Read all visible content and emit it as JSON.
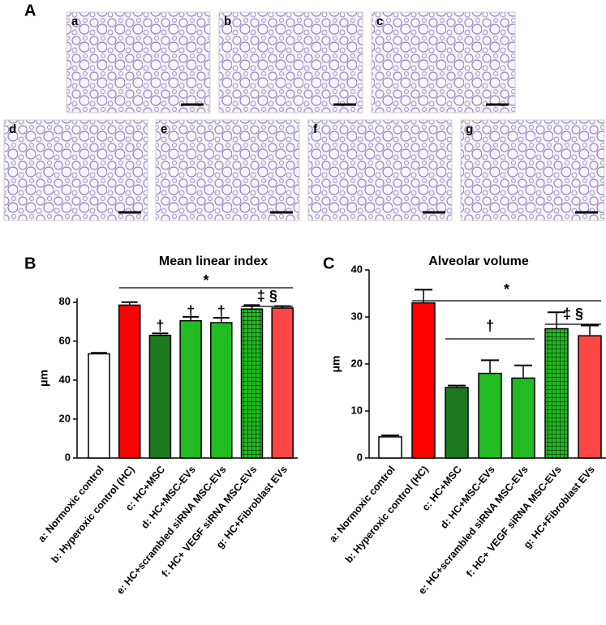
{
  "panel_labels": [
    "A",
    "B",
    "C"
  ],
  "micrographs": [
    "a",
    "b",
    "c",
    "d",
    "e",
    "f",
    "g"
  ],
  "chart_data": [
    {
      "type": "bar",
      "title": "Mean linear index",
      "ylabel": "μm",
      "categories": [
        "a: Normoxic control",
        "b: Hyperoxic control (HC)",
        "c: HC+MSC",
        "d: HC+MSC-EVs",
        "e: HC+scrambled siRNA MSC-EVs",
        "f: HC+ VEGF siRNA MSC-EVs",
        "g: HC+Fibroblast EVs"
      ],
      "values": [
        53.5,
        78.5,
        63,
        70.5,
        69.5,
        76.5,
        77
      ],
      "errors": [
        0.5,
        1.5,
        1,
        2,
        2.5,
        2,
        1
      ],
      "colors": [
        "#ffffff",
        "#ff0000",
        "#1e7a1e",
        "#22bb22",
        "#22bb22",
        "#22bb22",
        "#ff4646"
      ],
      "hatched": [
        false,
        false,
        false,
        false,
        false,
        true,
        false
      ],
      "ylim": [
        0,
        82
      ],
      "yticks": [
        0,
        20,
        40,
        60,
        80
      ],
      "annotations": [
        "*",
        "†",
        "†",
        "†",
        "‡ §"
      ]
    },
    {
      "type": "bar",
      "title": "Alveolar volume",
      "ylabel": "μm",
      "categories": [
        "a: Normoxic control",
        "b: Hyperoxic control (HC)",
        "c: HC+MSC",
        "d: HC+MSC-EVs",
        "e: HC+scrambled siRNA MSC-EVs",
        "f: HC+ VEGF siRNA MSC-EVs",
        "g: HC+Fibroblast EVs"
      ],
      "values": [
        4.5,
        33,
        15,
        18,
        17,
        27.5,
        26
      ],
      "errors": [
        0.3,
        2.8,
        0.4,
        2.8,
        2.7,
        3.5,
        2.2
      ],
      "colors": [
        "#ffffff",
        "#ff0000",
        "#1e7a1e",
        "#22bb22",
        "#22bb22",
        "#22bb22",
        "#ff4646"
      ],
      "hatched": [
        false,
        false,
        false,
        false,
        false,
        true,
        false
      ],
      "ylim": [
        0,
        40
      ],
      "yticks": [
        0,
        10,
        20,
        30,
        40
      ],
      "annotations": [
        "*",
        "†",
        "‡ §"
      ]
    }
  ]
}
